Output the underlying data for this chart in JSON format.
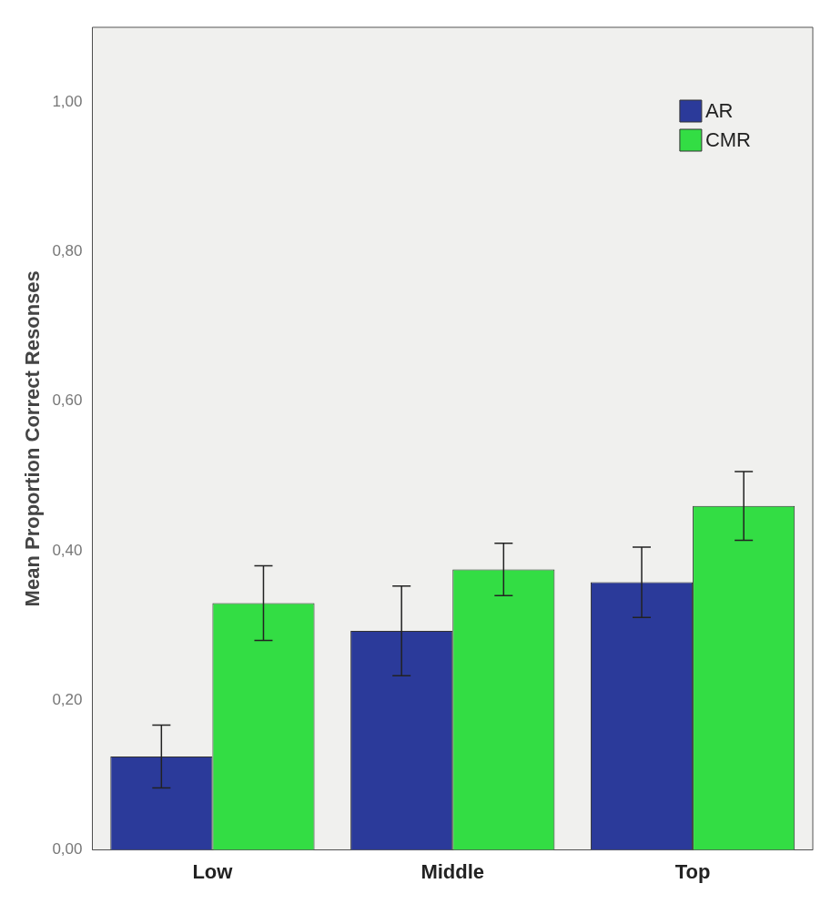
{
  "chart_data": {
    "type": "bar",
    "ylabel": "Mean Proportion Correct Resonses",
    "categories": [
      "Low",
      "Middle",
      "Top"
    ],
    "series": [
      {
        "name": "AR",
        "color": "#2b3a9a",
        "values": [
          0.125,
          0.293,
          0.358
        ],
        "errors": [
          0.042,
          0.06,
          0.047
        ]
      },
      {
        "name": "CMR",
        "color": "#33dd44",
        "values": [
          0.33,
          0.375,
          0.46
        ],
        "errors": [
          0.05,
          0.035,
          0.046
        ]
      }
    ],
    "ylim": [
      0,
      1.1
    ],
    "yticks": [
      {
        "value": 0,
        "label": "0,00"
      },
      {
        "value": 0.2,
        "label": "0,20"
      },
      {
        "value": 0.4,
        "label": "0,40"
      },
      {
        "value": 0.6,
        "label": "0,60"
      },
      {
        "value": 0.8,
        "label": "0,80"
      },
      {
        "value": 1,
        "label": "1,00"
      }
    ],
    "grid": false,
    "legend": "top right"
  }
}
